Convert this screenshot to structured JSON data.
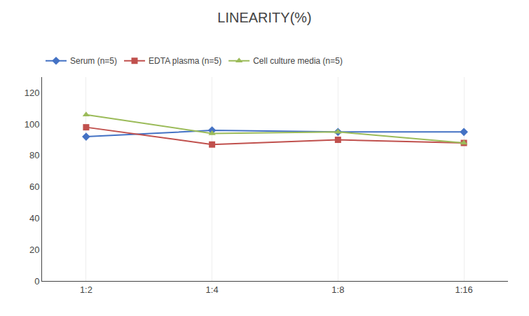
{
  "chart_data": {
    "type": "line",
    "title": "LINEARITY(%)",
    "categories": [
      "1:2",
      "1:4",
      "1:8",
      "1:16"
    ],
    "series": [
      {
        "name": "Serum (n=5)",
        "color": "#4472C4",
        "marker": "diamond",
        "values": [
          92,
          96,
          95,
          95
        ]
      },
      {
        "name": "EDTA plasma (n=5)",
        "color": "#C0504D",
        "marker": "square",
        "values": [
          98,
          87,
          90,
          88
        ]
      },
      {
        "name": "Cell culture media (n=5)",
        "color": "#9BBB59",
        "marker": "triangle-up",
        "values": [
          106,
          94,
          95,
          88
        ]
      }
    ],
    "ylim": [
      0,
      130
    ],
    "yticks": [
      0,
      20,
      40,
      60,
      80,
      100,
      120
    ],
    "grid": "x",
    "legend": "top"
  }
}
